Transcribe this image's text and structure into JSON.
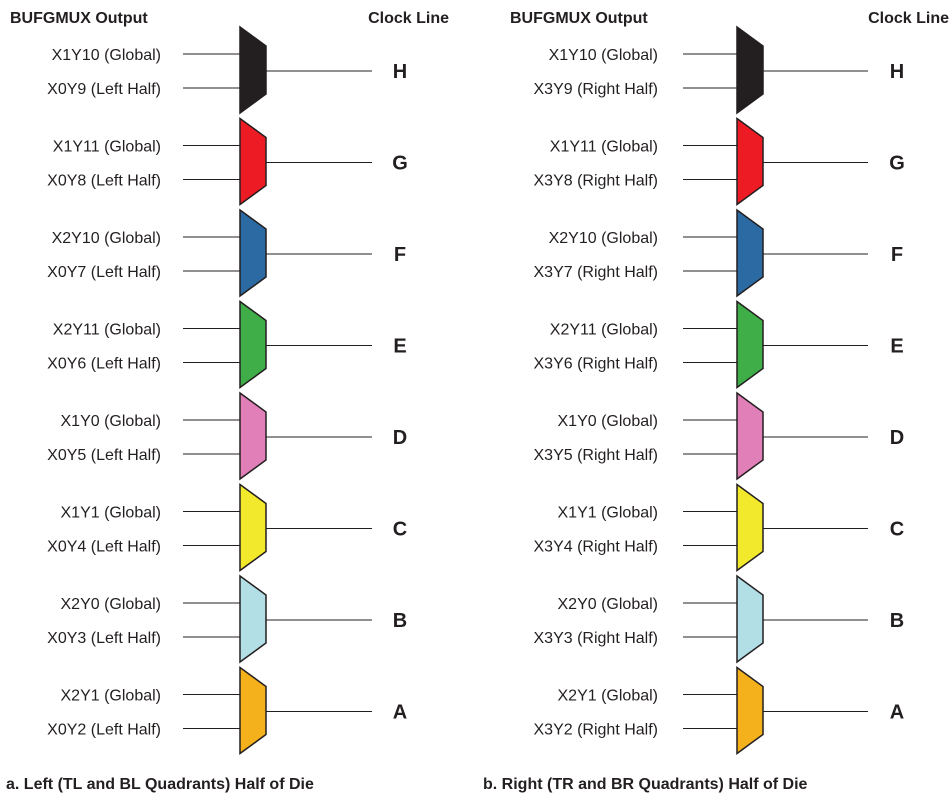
{
  "panels": [
    {
      "header_output": "BUFGMUX Output",
      "header_clock": "Clock Line",
      "caption": "a. Left (TL and BL Quadrants) Half of Die",
      "muxes": [
        {
          "clock": "H",
          "color": "#231f20",
          "in1": "X1Y10 (Global)",
          "in2": "X0Y9 (Left Half)"
        },
        {
          "clock": "G",
          "color": "#ed1c24",
          "in1": "X1Y11 (Global)",
          "in2": "X0Y8 (Left Half)"
        },
        {
          "clock": "F",
          "color": "#2b6aa2",
          "in1": "X2Y10 (Global)",
          "in2": "X0Y7 (Left Half)"
        },
        {
          "clock": "E",
          "color": "#3fae49",
          "in1": "X2Y11 (Global)",
          "in2": "X0Y6 (Left Half)"
        },
        {
          "clock": "D",
          "color": "#e07fb8",
          "in1": "X1Y0 (Global)",
          "in2": "X0Y5 (Left Half)"
        },
        {
          "clock": "C",
          "color": "#f2e82c",
          "in1": "X1Y1 (Global)",
          "in2": "X0Y4 (Left Half)"
        },
        {
          "clock": "B",
          "color": "#b2dfe6",
          "in1": "X2Y0 (Global)",
          "in2": "X0Y3 (Left Half)"
        },
        {
          "clock": "A",
          "color": "#f5b11c",
          "in1": "X2Y1 (Global)",
          "in2": "X0Y2 (Left Half)"
        }
      ]
    },
    {
      "header_output": "BUFGMUX Output",
      "header_clock": "Clock Line",
      "caption": "b. Right (TR and BR Quadrants) Half of Die",
      "muxes": [
        {
          "clock": "H",
          "color": "#231f20",
          "in1": "X1Y10 (Global)",
          "in2": "X3Y9 (Right Half)"
        },
        {
          "clock": "G",
          "color": "#ed1c24",
          "in1": "X1Y11 (Global)",
          "in2": "X3Y8 (Right Half)"
        },
        {
          "clock": "F",
          "color": "#2b6aa2",
          "in1": "X2Y10 (Global)",
          "in2": "X3Y7 (Right Half)"
        },
        {
          "clock": "E",
          "color": "#3fae49",
          "in1": "X2Y11 (Global)",
          "in2": "X3Y6 (Right Half)"
        },
        {
          "clock": "D",
          "color": "#e07fb8",
          "in1": "X1Y0 (Global)",
          "in2": "X3Y5 (Right Half)"
        },
        {
          "clock": "C",
          "color": "#f2e82c",
          "in1": "X1Y1 (Global)",
          "in2": "X3Y4 (Right Half)"
        },
        {
          "clock": "B",
          "color": "#b2dfe6",
          "in1": "X2Y0 (Global)",
          "in2": "X3Y3 (Right Half)"
        },
        {
          "clock": "A",
          "color": "#f5b11c",
          "in1": "X2Y1 (Global)",
          "in2": "X3Y2 (Right Half)"
        }
      ]
    }
  ]
}
